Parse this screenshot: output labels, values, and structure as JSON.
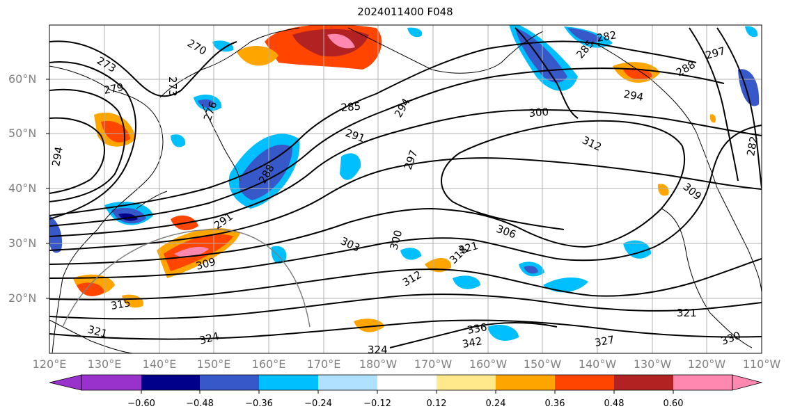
{
  "figure": {
    "title": "2024011400 F048"
  },
  "axes": {
    "lat_labels": [
      "60°N",
      "50°N",
      "40°N",
      "30°N",
      "20°N"
    ],
    "lon_labels": [
      "120°E",
      "130°E",
      "140°E",
      "150°E",
      "160°E",
      "170°E",
      "180°W",
      "170°W",
      "160°W",
      "150°W",
      "140°W",
      "130°W",
      "120°W",
      "110°W"
    ],
    "gridlines": true
  },
  "contours": {
    "labels": [
      "273",
      "273",
      "270",
      "279",
      "276",
      "294",
      "285",
      "291",
      "282",
      "288",
      "291",
      "297",
      "294",
      "285",
      "288",
      "294",
      "300",
      "312",
      "297",
      "300",
      "303",
      "306",
      "309",
      "309",
      "312",
      "315",
      "318",
      "321",
      "321",
      "321",
      "324",
      "324",
      "327",
      "330",
      "336",
      "342",
      "282"
    ]
  },
  "colorbar": {
    "ticks": [
      "−0.60",
      "−0.48",
      "−0.36",
      "−0.24",
      "−0.12",
      "0.12",
      "0.24",
      "0.36",
      "0.48",
      "0.60"
    ],
    "colors": [
      "#9932cc",
      "#00008b",
      "#3758c9",
      "#00bfff",
      "#b0e2ff",
      "#ffffff",
      "#ffe98a",
      "#ffa500",
      "#ff4500",
      "#b22222",
      "#ff88b0"
    ]
  }
}
